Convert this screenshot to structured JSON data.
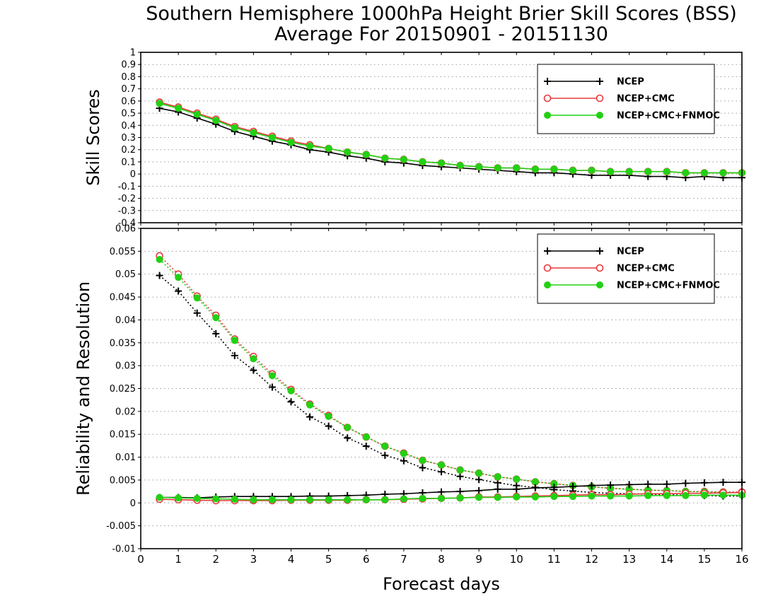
{
  "title": {
    "line1": "Southern Hemisphere 1000hPa Height Brier Skill Scores (BSS)",
    "line2": "Average For 20150901 - 20151130"
  },
  "colors": {
    "NCEP": "#000000",
    "NCEP+CMC": "#e8383d",
    "NCEP+CMC+FNMOC": "#22d114",
    "grid": "#9a9a9a"
  },
  "chart_data": [
    {
      "type": "line",
      "ylabel": "Skill Scores",
      "xlabel": "",
      "xlim": [
        0,
        16
      ],
      "ylim": [
        -0.4,
        1
      ],
      "yticks": [
        "-0.4",
        "-0.3",
        "-0.2",
        "-0.1",
        "0",
        "0.1",
        "0.2",
        "0.3",
        "0.4",
        "0.5",
        "0.6",
        "0.7",
        "0.8",
        "0.9",
        "1"
      ],
      "grid": true,
      "legend_position": "top-right",
      "x": [
        0.5,
        1,
        1.5,
        2,
        2.5,
        3,
        3.5,
        4,
        4.5,
        5,
        5.5,
        6,
        6.5,
        7,
        7.5,
        8,
        8.5,
        9,
        9.5,
        10,
        10.5,
        11,
        11.5,
        12,
        12.5,
        13,
        13.5,
        14,
        14.5,
        15,
        15.5,
        16
      ],
      "series": [
        {
          "name": "NCEP",
          "marker": "plus",
          "values": [
            0.54,
            0.51,
            0.46,
            0.41,
            0.35,
            0.31,
            0.27,
            0.24,
            0.2,
            0.18,
            0.15,
            0.13,
            0.1,
            0.09,
            0.07,
            0.06,
            0.05,
            0.04,
            0.03,
            0.02,
            0.01,
            0.01,
            0.0,
            -0.01,
            -0.01,
            -0.01,
            -0.02,
            -0.02,
            -0.03,
            -0.02,
            -0.03,
            -0.03
          ]
        },
        {
          "name": "NCEP+CMC",
          "marker": "open-circle",
          "values": [
            0.59,
            0.55,
            0.5,
            0.45,
            0.39,
            0.35,
            0.31,
            0.27,
            0.24,
            0.21,
            0.18,
            0.16,
            0.13,
            0.12,
            0.1,
            0.09,
            0.07,
            0.06,
            0.05,
            0.05,
            0.04,
            0.04,
            0.03,
            0.03,
            0.02,
            0.02,
            0.02,
            0.02,
            0.01,
            0.01,
            0.01,
            0.01
          ]
        },
        {
          "name": "NCEP+CMC+FNMOC",
          "marker": "filled-circle",
          "values": [
            0.58,
            0.54,
            0.49,
            0.44,
            0.38,
            0.34,
            0.3,
            0.26,
            0.23,
            0.21,
            0.18,
            0.16,
            0.13,
            0.12,
            0.1,
            0.09,
            0.07,
            0.06,
            0.05,
            0.05,
            0.04,
            0.04,
            0.03,
            0.03,
            0.02,
            0.02,
            0.02,
            0.02,
            0.01,
            0.01,
            0.01,
            0.01
          ]
        }
      ]
    },
    {
      "type": "line",
      "ylabel": "Reliability and Resolution",
      "xlabel": "Forecast days",
      "xlim": [
        0,
        16
      ],
      "ylim": [
        -0.01,
        0.06
      ],
      "yticks": [
        "-0.01",
        "-0.005",
        "0",
        "0.005",
        "0.01",
        "0.015",
        "0.02",
        "0.025",
        "0.03",
        "0.035",
        "0.04",
        "0.045",
        "0.05",
        "0.055",
        "0.06"
      ],
      "xticks": [
        "0",
        "1",
        "2",
        "3",
        "4",
        "5",
        "6",
        "7",
        "8",
        "9",
        "10",
        "11",
        "12",
        "13",
        "14",
        "15",
        "16"
      ],
      "grid": true,
      "legend_position": "top-right",
      "x": [
        0.5,
        1,
        1.5,
        2,
        2.5,
        3,
        3.5,
        4,
        4.5,
        5,
        5.5,
        6,
        6.5,
        7,
        7.5,
        8,
        8.5,
        9,
        9.5,
        10,
        10.5,
        11,
        11.5,
        12,
        12.5,
        13,
        13.5,
        14,
        14.5,
        15,
        15.5,
        16
      ],
      "series": [
        {
          "name": "NCEP",
          "component": "resolution",
          "line": "dotted",
          "show_in_legend": true,
          "marker": "plus",
          "values": [
            0.0497,
            0.0463,
            0.0415,
            0.037,
            0.0322,
            0.029,
            0.0253,
            0.0221,
            0.0188,
            0.0168,
            0.0142,
            0.0124,
            0.0104,
            0.0092,
            0.0077,
            0.0068,
            0.0058,
            0.0051,
            0.0044,
            0.0038,
            0.0034,
            0.0029,
            0.0026,
            0.0023,
            0.0021,
            0.002,
            0.0019,
            0.0018,
            0.0017,
            0.0016,
            0.0015,
            0.0015
          ]
        },
        {
          "name": "NCEP+CMC",
          "component": "resolution",
          "line": "dotted",
          "show_in_legend": true,
          "marker": "open-circle",
          "values": [
            0.054,
            0.05,
            0.0452,
            0.041,
            0.0358,
            0.032,
            0.0282,
            0.0248,
            0.0216,
            0.0191,
            0.0165,
            0.0144,
            0.0124,
            0.0109,
            0.0093,
            0.0083,
            0.0072,
            0.0065,
            0.0057,
            0.0052,
            0.0046,
            0.0042,
            0.0038,
            0.0035,
            0.0032,
            0.003,
            0.0028,
            0.0027,
            0.0025,
            0.0025,
            0.0024,
            0.0024
          ]
        },
        {
          "name": "NCEP+CMC+FNMOC",
          "component": "resolution",
          "line": "dotted",
          "show_in_legend": true,
          "marker": "filled-circle",
          "values": [
            0.0532,
            0.0493,
            0.0448,
            0.0405,
            0.0355,
            0.0315,
            0.0278,
            0.0245,
            0.0214,
            0.0189,
            0.0165,
            0.0144,
            0.0124,
            0.0108,
            0.0093,
            0.0083,
            0.0072,
            0.0065,
            0.0057,
            0.0052,
            0.0046,
            0.0042,
            0.0038,
            0.0035,
            0.0032,
            0.003,
            0.0028,
            0.0027,
            0.0025,
            0.0024,
            0.0023,
            0.0022
          ]
        },
        {
          "name": "NCEP",
          "component": "reliability",
          "line": "solid",
          "show_in_legend": false,
          "marker": "plus",
          "values": [
            0.0012,
            0.0012,
            0.0011,
            0.0013,
            0.0014,
            0.0014,
            0.0014,
            0.0014,
            0.0015,
            0.0015,
            0.0016,
            0.0017,
            0.0019,
            0.002,
            0.0022,
            0.0024,
            0.0025,
            0.0027,
            0.003,
            0.003,
            0.0033,
            0.0034,
            0.0036,
            0.0038,
            0.0039,
            0.004,
            0.0041,
            0.0041,
            0.0043,
            0.0044,
            0.0045,
            0.0045
          ]
        },
        {
          "name": "NCEP+CMC",
          "component": "reliability",
          "line": "solid",
          "show_in_legend": false,
          "marker": "open-circle",
          "values": [
            0.0008,
            0.0007,
            0.0006,
            0.0005,
            0.0005,
            0.0005,
            0.0005,
            0.0006,
            0.0006,
            0.0006,
            0.0006,
            0.0007,
            0.0007,
            0.0008,
            0.0009,
            0.001,
            0.0011,
            0.0013,
            0.0013,
            0.0014,
            0.0015,
            0.0016,
            0.0017,
            0.0018,
            0.0018,
            0.0019,
            0.002,
            0.002,
            0.0021,
            0.0021,
            0.0022,
            0.0023
          ]
        },
        {
          "name": "NCEP+CMC+FNMOC",
          "component": "reliability",
          "line": "solid",
          "show_in_legend": false,
          "marker": "filled-circle",
          "values": [
            0.0012,
            0.0011,
            0.001,
            0.0009,
            0.0008,
            0.0007,
            0.0007,
            0.0007,
            0.0007,
            0.0007,
            0.0007,
            0.0007,
            0.0007,
            0.0009,
            0.001,
            0.001,
            0.0011,
            0.0012,
            0.0012,
            0.0013,
            0.0013,
            0.0014,
            0.0014,
            0.0015,
            0.0015,
            0.0015,
            0.0016,
            0.0016,
            0.0016,
            0.0017,
            0.0017,
            0.0017
          ]
        }
      ]
    }
  ]
}
